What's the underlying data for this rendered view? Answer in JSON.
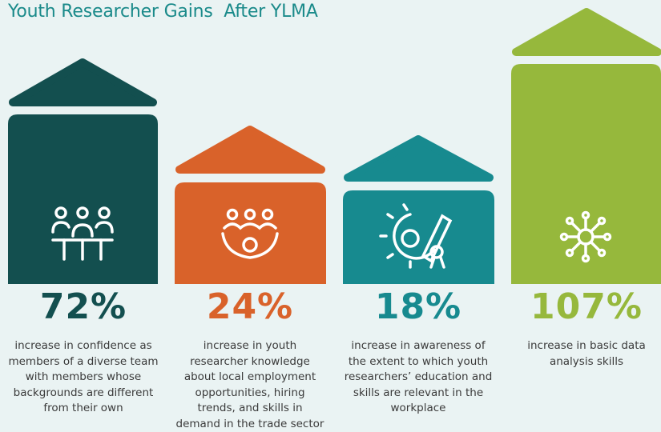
{
  "title": "Youth Researcher Gains  After YLMA",
  "items": [
    {
      "value": "72%",
      "description": [
        "increase in confidence as",
        "members of a diverse team",
        "with members whose",
        "backgrounds are different",
        "from their own"
      ]
    },
    {
      "value": "24%",
      "description": [
        "increase in youth",
        "researcher knowledge",
        "about local employment",
        "opportunities, hiring",
        "trends, and skills in",
        "demand in the trade sector"
      ]
    },
    {
      "value": "18%",
      "description": [
        "increase in awareness of",
        "the extent to which youth",
        "researchers’ education and",
        "skills are relevant in the",
        "workplace"
      ]
    },
    {
      "value": "107%",
      "description": [
        "increase in basic data",
        "analysis skills"
      ]
    }
  ]
}
